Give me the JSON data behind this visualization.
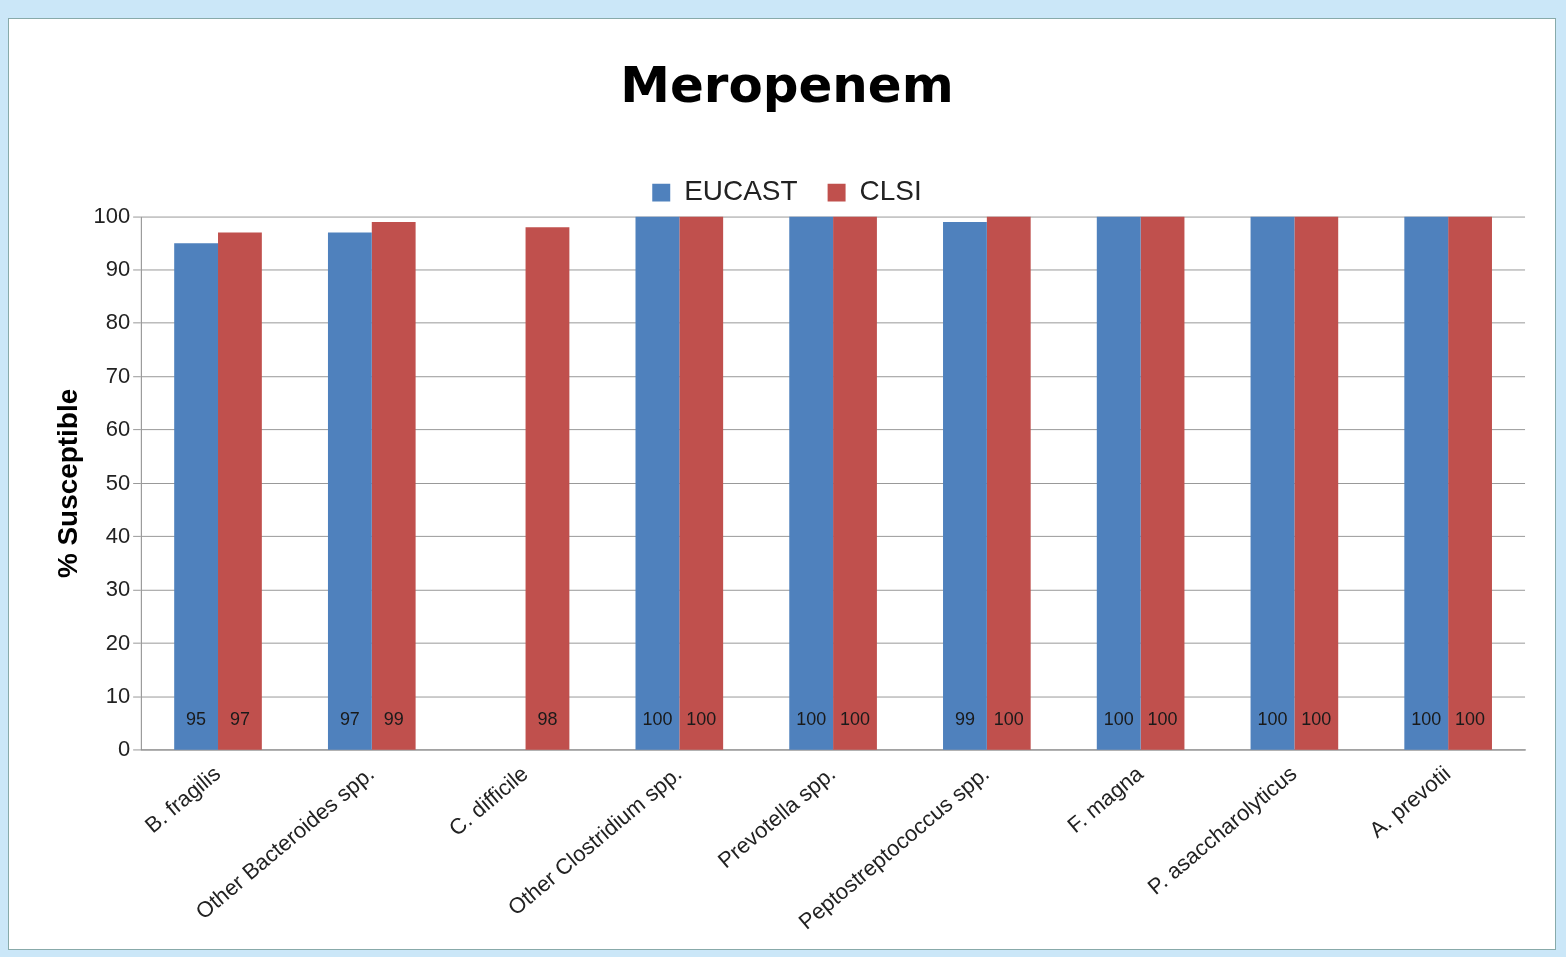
{
  "chart_data": {
    "type": "bar",
    "title": "Meropenem",
    "ylabel": "% Susceptible",
    "categories": [
      "B. fragilis",
      "Other Bacteroides spp.",
      "C. difficile",
      "Other Clostridium spp.",
      "Prevotella spp.",
      "Peptostreptococcus spp.",
      "F. magna",
      "P. asaccharolyticus",
      "A. prevotii"
    ],
    "series": [
      {
        "name": "EUCAST",
        "color": "#4f81bd",
        "values": [
          95,
          97,
          null,
          100,
          100,
          99,
          100,
          100,
          100
        ]
      },
      {
        "name": "CLSI",
        "color": "#c0504d",
        "values": [
          97,
          99,
          98,
          100,
          100,
          100,
          100,
          100,
          100
        ]
      }
    ],
    "ylim": [
      0,
      100
    ],
    "yticks": [
      0,
      10,
      20,
      30,
      40,
      50,
      60,
      70,
      80,
      90,
      100
    ],
    "grid": "y",
    "legend": "top",
    "data_labels": true
  }
}
